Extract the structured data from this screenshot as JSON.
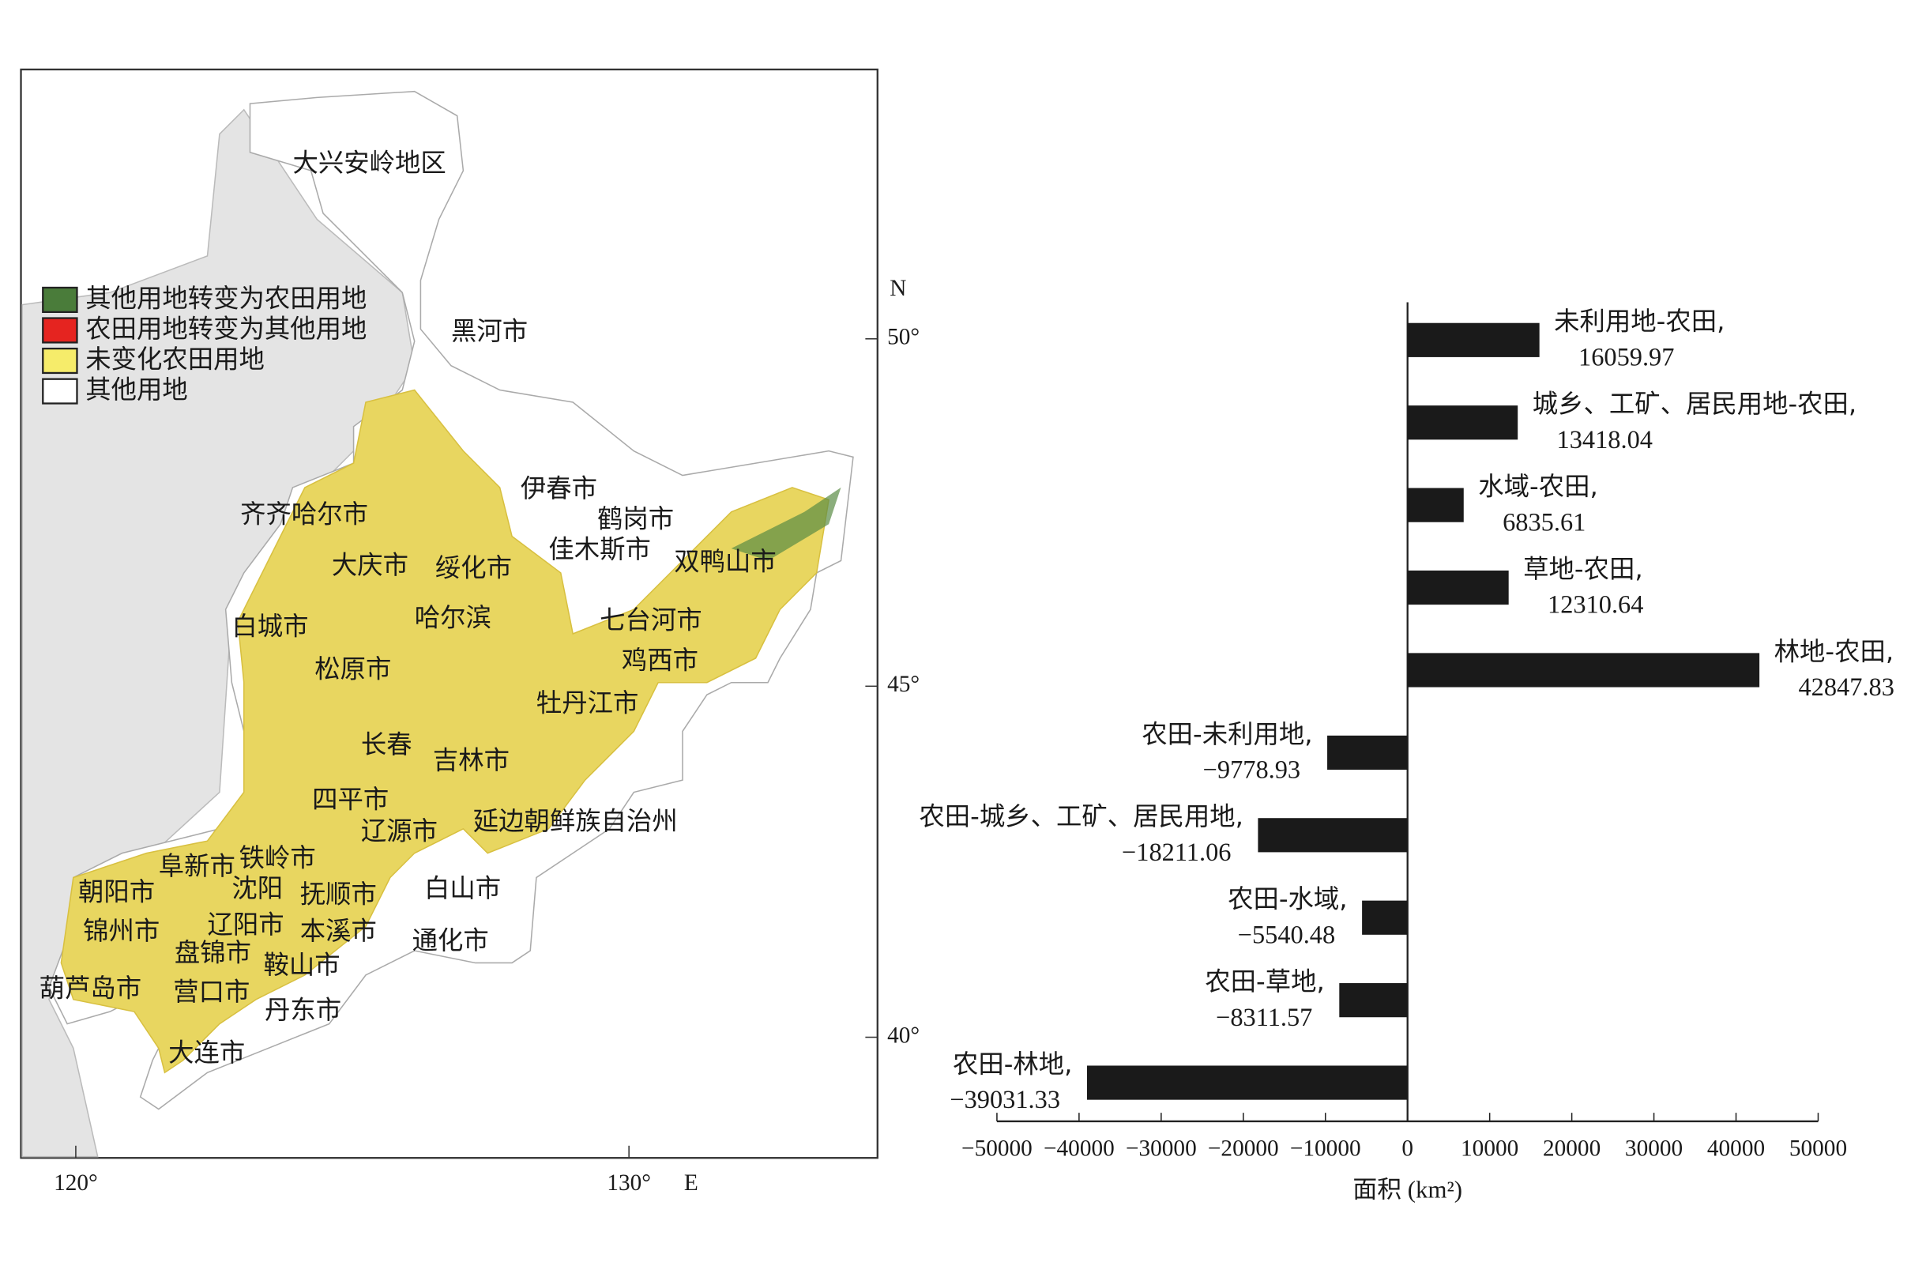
{
  "map": {
    "legend": [
      "其他用地转变为农田用地",
      "农田用地转变为其他用地",
      "未变化农田用地",
      "其他用地"
    ],
    "legend_colors": [
      "#4a7c3a",
      "#e52420",
      "#f6ec6a",
      "#ffffff"
    ],
    "labels": [
      "大兴安岭地区",
      "黑河市",
      "伊春市",
      "鹤岗市",
      "齐齐哈尔市",
      "佳木斯市",
      "双鸭山市",
      "大庆市",
      "绥化市",
      "白城市",
      "哈尔滨",
      "七台河市",
      "松原市",
      "鸡西市",
      "牡丹江市",
      "长春",
      "吉林市",
      "四平市",
      "延边朝鲜族自治州",
      "辽源市",
      "阜新市",
      "铁岭市",
      "朝阳市",
      "沈阳",
      "抚顺市",
      "白山市",
      "锦州市",
      "辽阳市",
      "本溪市",
      "通化市",
      "盘锦市",
      "鞍山市",
      "葫芦岛市",
      "营口市",
      "丹东市",
      "大连市"
    ],
    "lat_ticks": [
      "50°",
      "45°",
      "40°"
    ],
    "north": "N",
    "lon_ticks": [
      "120°",
      "130°"
    ],
    "east": "E"
  },
  "chart_data": {
    "type": "barh",
    "categories": [
      "未利用地-农田,",
      "城乡、工矿、居民用地-农田,",
      "水域-农田,",
      "草地-农田,",
      "林地-农田,",
      "农田-未利用地,",
      "农田-城乡、工矿、居民用地,",
      "农田-水域,",
      "农田-草地,",
      "农田-林地,"
    ],
    "values": [
      16059.97,
      13418.04,
      6835.61,
      12310.64,
      42847.83,
      -9778.93,
      -18211.06,
      -5540.48,
      -8311.57,
      -39031.33
    ],
    "value_labels": [
      "16059.97",
      "13418.04",
      "6835.61",
      "12310.64",
      "42847.83",
      "−9778.93",
      "−18211.06",
      "−5540.48",
      "−8311.57",
      "−39031.33"
    ],
    "color": "#1a1a1a",
    "xlim": [
      -50000,
      50000
    ],
    "xticks": [
      {
        "value": -50000,
        "label": "−50000"
      },
      {
        "value": -40000,
        "label": "−40000"
      },
      {
        "value": -30000,
        "label": "−30000"
      },
      {
        "value": -20000,
        "label": "−20000"
      },
      {
        "value": -10000,
        "label": "−10000"
      },
      0,
      10000,
      20000,
      30000,
      40000,
      50000
    ],
    "xlabel": "面积 (km²)"
  }
}
